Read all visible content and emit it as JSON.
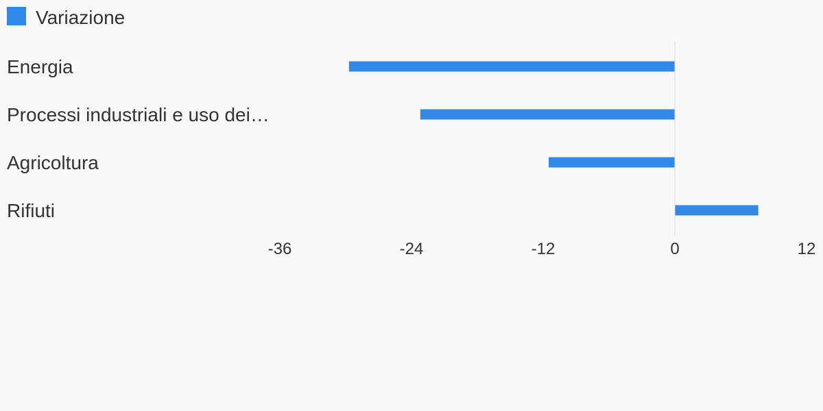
{
  "chart_data": {
    "type": "bar",
    "orientation": "horizontal",
    "categories": [
      "Energia",
      "Processi industriali e uso dei…",
      "Agricoltura",
      "Rifiuti"
    ],
    "series": [
      {
        "name": "Variazione",
        "values": [
          -29.7,
          -23.2,
          -11.5,
          7.6
        ],
        "color": "#3388e8"
      }
    ],
    "xlim": [
      -36,
      12
    ],
    "xticks": [
      -36,
      -24,
      -12,
      0,
      12
    ],
    "grid": false,
    "legend_position": "top-left",
    "zero_line_color": "#d9d9d9"
  }
}
